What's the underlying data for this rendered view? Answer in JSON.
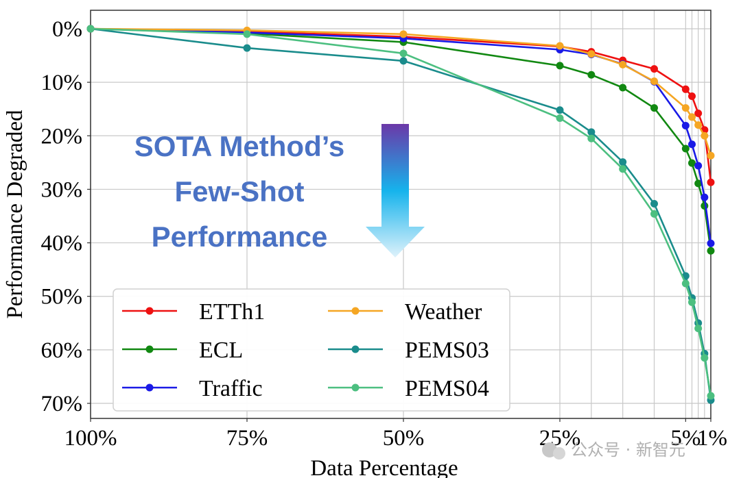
{
  "chart_data": {
    "type": "line",
    "xlabel": "Data Percentage",
    "ylabel": "Performance Degraded",
    "x_tick_labels": [
      {
        "value": 100,
        "label": "100%"
      },
      {
        "value": 75,
        "label": "75%"
      },
      {
        "value": 50,
        "label": "50%"
      },
      {
        "value": 25,
        "label": "25%"
      },
      {
        "value": 5,
        "label": "5%"
      },
      {
        "value": 1,
        "label": "1%"
      }
    ],
    "x_gridlines": [
      100,
      75,
      50,
      25,
      20,
      15,
      10,
      5,
      4,
      3,
      2,
      1
    ],
    "xlim": [
      100,
      1
    ],
    "ylim": [
      0,
      73
    ],
    "y_ticks": [
      {
        "value": 0,
        "label": "0%"
      },
      {
        "value": 10,
        "label": "10%"
      },
      {
        "value": 20,
        "label": "20%"
      },
      {
        "value": 30,
        "label": "30%"
      },
      {
        "value": 40,
        "label": "40%"
      },
      {
        "value": 50,
        "label": "50%"
      },
      {
        "value": 60,
        "label": "60%"
      },
      {
        "value": 70,
        "label": "70%"
      }
    ],
    "grid": true,
    "y_inverted": true,
    "x": [
      100,
      75,
      50,
      25,
      20,
      15,
      10,
      5,
      4,
      3,
      2,
      1
    ],
    "series": [
      {
        "name": "ETTh1",
        "color": "#ee1111",
        "values": [
          0,
          0.5,
          1.5,
          3.3,
          4.3,
          5.9,
          7.5,
          11.3,
          12.6,
          15.8,
          18.9,
          28.7
        ]
      },
      {
        "name": "ECL",
        "color": "#118811",
        "values": [
          0,
          0.9,
          2.5,
          6.9,
          8.6,
          11.0,
          14.8,
          22.4,
          25.1,
          28.9,
          33.1,
          41.5
        ]
      },
      {
        "name": "Traffic",
        "color": "#1a1ae6",
        "values": [
          0,
          0.7,
          1.8,
          3.9,
          4.8,
          6.6,
          9.9,
          18.1,
          21.6,
          25.6,
          31.5,
          40.1
        ]
      },
      {
        "name": "Weather",
        "color": "#f5a623",
        "values": [
          0,
          0.3,
          1.0,
          3.2,
          4.7,
          6.7,
          9.8,
          14.8,
          16.5,
          18.0,
          20.0,
          23.7
        ]
      },
      {
        "name": "PEMS03",
        "color": "#1a8c8c",
        "values": [
          0,
          3.6,
          6.0,
          15.2,
          19.3,
          24.9,
          32.7,
          46.2,
          50.3,
          55.0,
          60.7,
          69.4
        ]
      },
      {
        "name": "PEMS04",
        "color": "#4cbf80",
        "values": [
          0,
          1.0,
          4.6,
          16.7,
          20.5,
          26.2,
          34.6,
          47.6,
          51.1,
          56.0,
          61.5,
          68.6
        ]
      }
    ],
    "legend": {
      "placement": "lower-left",
      "columns": 2
    },
    "annotation": {
      "lines": [
        "SOTA Method’s",
        "Few-Shot",
        "Performance"
      ]
    },
    "arrow_gradient": {
      "top": "#6b38a8",
      "middle": "#16b3ec",
      "bottom": "#dff2fb"
    }
  },
  "watermark": {
    "text": "公众号 · 新智元"
  }
}
